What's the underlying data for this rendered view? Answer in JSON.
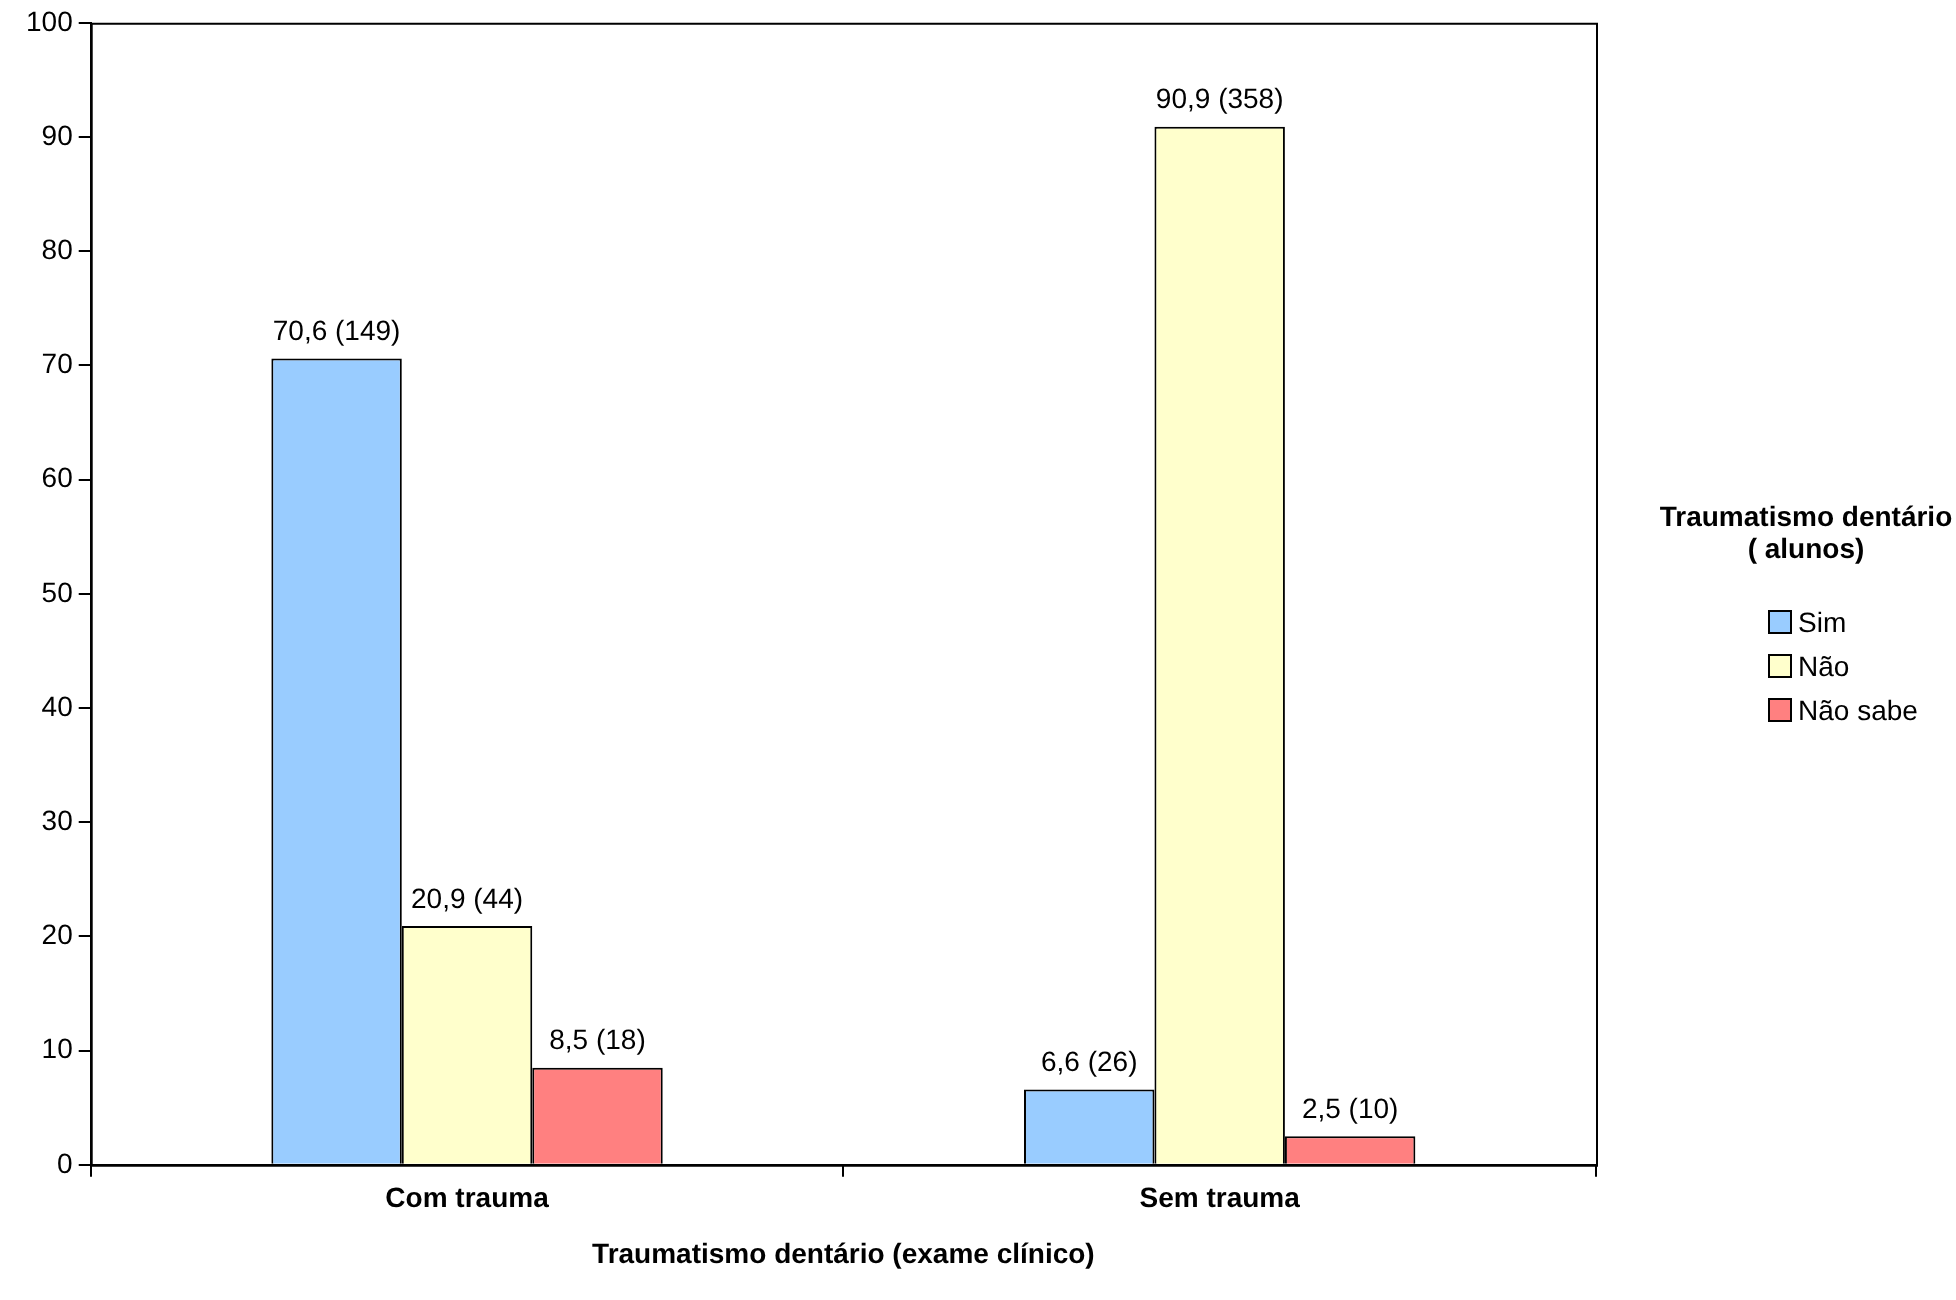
{
  "chart_data": {
    "type": "bar",
    "xlabel": "Traumatismo dentário (exame clínico)",
    "legend_title": "Traumatismo dentário ( alunos)",
    "categories": [
      "Com trauma",
      "Sem trauma"
    ],
    "series": [
      {
        "name": "Sim",
        "color": "#99ccff",
        "values": [
          70.6,
          6.6
        ],
        "value_labels": [
          "70,6 (149)",
          "6,6 (26)"
        ]
      },
      {
        "name": "Não",
        "color": "#ffffcc",
        "values": [
          20.9,
          90.9
        ],
        "value_labels": [
          "20,9 (44)",
          "90,9 (358)"
        ]
      },
      {
        "name": "Não sabe",
        "color": "#ff8080",
        "values": [
          8.5,
          2.5
        ],
        "value_labels": [
          "8,5 (18)",
          "2,5 (10)"
        ]
      }
    ],
    "ylim": [
      0,
      100
    ],
    "yticks": [
      0,
      10,
      20,
      30,
      40,
      50,
      60,
      70,
      80,
      90,
      100
    ],
    "grid": false,
    "legend": "right"
  }
}
